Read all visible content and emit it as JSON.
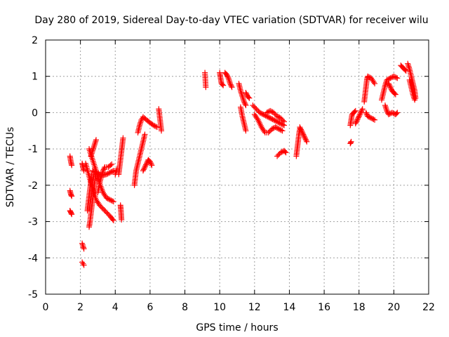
{
  "chart_data": {
    "type": "scatter",
    "title": "Day 280 of 2019, Sidereal Day-to-day VTEC variation (SDTVAR) for receiver wilu",
    "xlabel": "GPS time / hours",
    "ylabel": "SDTVAR / TECUs",
    "xlim": [
      0,
      22
    ],
    "ylim": [
      -5,
      2
    ],
    "xticks": [
      "0",
      "2",
      "4",
      "6",
      "8",
      "10",
      "12",
      "14",
      "16",
      "18",
      "20",
      "22"
    ],
    "yticks": [
      "-5",
      "-4",
      "-3",
      "-2",
      "-1",
      "0",
      "1",
      "2"
    ],
    "grid": true,
    "marker": "+",
    "marker_color": "#ff0000",
    "series": [
      {
        "name": "SDTVAR",
        "segments": [
          [
            [
              1.4,
              -1.2
            ],
            [
              1.45,
              -1.35
            ],
            [
              1.5,
              -1.45
            ]
          ],
          [
            [
              1.4,
              -2.15
            ],
            [
              1.45,
              -2.25
            ],
            [
              1.5,
              -2.3
            ]
          ],
          [
            [
              1.4,
              -2.7
            ],
            [
              1.45,
              -2.75
            ],
            [
              1.5,
              -2.8
            ]
          ],
          [
            [
              2.1,
              -3.6
            ],
            [
              2.15,
              -3.68
            ],
            [
              2.2,
              -3.75
            ]
          ],
          [
            [
              2.1,
              -4.12
            ],
            [
              2.15,
              -4.16
            ],
            [
              2.2,
              -4.2
            ]
          ],
          [
            [
              2.1,
              -1.4
            ],
            [
              2.15,
              -1.5
            ],
            [
              2.2,
              -1.6
            ]
          ],
          [
            [
              2.3,
              -1.4
            ],
            [
              2.5,
              -1.75
            ],
            [
              2.7,
              -2.1
            ],
            [
              2.9,
              -2.4
            ],
            [
              3.1,
              -2.55
            ],
            [
              3.3,
              -2.65
            ],
            [
              3.5,
              -2.75
            ],
            [
              3.7,
              -2.85
            ],
            [
              3.9,
              -2.97
            ]
          ],
          [
            [
              2.5,
              -3.15
            ],
            [
              2.55,
              -3.0
            ],
            [
              2.6,
              -2.8
            ],
            [
              2.65,
              -2.6
            ],
            [
              2.7,
              -2.4
            ],
            [
              2.75,
              -2.2
            ],
            [
              2.8,
              -2.0
            ],
            [
              2.85,
              -1.8
            ],
            [
              2.9,
              -1.6
            ]
          ],
          [
            [
              2.4,
              -2.7
            ],
            [
              2.45,
              -2.5
            ],
            [
              2.5,
              -2.3
            ],
            [
              2.55,
              -2.1
            ],
            [
              2.6,
              -1.9
            ],
            [
              2.65,
              -1.7
            ]
          ],
          [
            [
              2.6,
              -1.2
            ],
            [
              2.7,
              -1.05
            ],
            [
              2.8,
              -0.9
            ],
            [
              2.9,
              -0.75
            ]
          ],
          [
            [
              2.5,
              -1.0
            ],
            [
              2.7,
              -1.3
            ],
            [
              2.9,
              -1.6
            ],
            [
              3.1,
              -1.95
            ],
            [
              3.3,
              -2.2
            ],
            [
              3.5,
              -2.35
            ],
            [
              3.7,
              -2.4
            ],
            [
              3.9,
              -2.45
            ]
          ],
          [
            [
              2.7,
              -1.6
            ],
            [
              2.9,
              -1.65
            ],
            [
              3.1,
              -1.7
            ],
            [
              3.3,
              -1.72
            ],
            [
              3.5,
              -1.7
            ],
            [
              3.7,
              -1.65
            ],
            [
              3.9,
              -1.6
            ]
          ],
          [
            [
              3.0,
              -2.2
            ],
            [
              3.1,
              -1.95
            ],
            [
              3.2,
              -1.75
            ],
            [
              3.3,
              -1.6
            ],
            [
              3.4,
              -1.5
            ],
            [
              3.6,
              -1.5
            ],
            [
              3.8,
              -1.42
            ]
          ],
          [
            [
              4.0,
              -1.7
            ],
            [
              4.1,
              -1.55
            ]
          ],
          [
            [
              4.2,
              -1.7
            ],
            [
              4.25,
              -1.5
            ],
            [
              4.3,
              -1.3
            ],
            [
              4.35,
              -1.1
            ],
            [
              4.4,
              -0.9
            ],
            [
              4.45,
              -0.7
            ]
          ],
          [
            [
              4.3,
              -2.55
            ],
            [
              4.32,
              -2.65
            ],
            [
              4.34,
              -2.8
            ],
            [
              4.36,
              -2.95
            ]
          ],
          [
            [
              5.1,
              -2.0
            ],
            [
              5.15,
              -1.8
            ],
            [
              5.2,
              -1.6
            ],
            [
              5.3,
              -1.4
            ],
            [
              5.4,
              -1.2
            ],
            [
              5.5,
              -1.0
            ],
            [
              5.6,
              -0.8
            ],
            [
              5.7,
              -0.6
            ]
          ],
          [
            [
              5.3,
              -0.55
            ],
            [
              5.4,
              -0.35
            ],
            [
              5.5,
              -0.2
            ],
            [
              5.6,
              -0.12
            ],
            [
              5.8,
              -0.2
            ],
            [
              6.0,
              -0.28
            ],
            [
              6.2,
              -0.35
            ],
            [
              6.4,
              -0.4
            ]
          ],
          [
            [
              5.6,
              -1.6
            ],
            [
              5.7,
              -1.5
            ],
            [
              5.8,
              -1.4
            ],
            [
              5.9,
              -1.3
            ],
            [
              6.0,
              -1.35
            ],
            [
              6.1,
              -1.45
            ]
          ],
          [
            [
              6.5,
              0.1
            ],
            [
              6.55,
              -0.1
            ],
            [
              6.6,
              -0.3
            ],
            [
              6.65,
              -0.5
            ]
          ],
          [
            [
              9.15,
              1.1
            ],
            [
              9.2,
              0.7
            ]
          ],
          [
            [
              10.0,
              1.1
            ],
            [
              10.05,
              0.95
            ],
            [
              10.1,
              0.8
            ],
            [
              10.2,
              0.75
            ]
          ],
          [
            [
              10.3,
              1.1
            ],
            [
              10.4,
              1.05
            ],
            [
              10.5,
              0.95
            ],
            [
              10.6,
              0.8
            ],
            [
              10.7,
              0.7
            ]
          ],
          [
            [
              11.1,
              0.8
            ],
            [
              11.2,
              0.6
            ],
            [
              11.3,
              0.45
            ],
            [
              11.4,
              0.3
            ],
            [
              11.5,
              0.2
            ]
          ],
          [
            [
              11.2,
              0.15
            ],
            [
              11.3,
              -0.1
            ],
            [
              11.4,
              -0.3
            ],
            [
              11.5,
              -0.5
            ]
          ],
          [
            [
              11.5,
              0.55
            ],
            [
              11.6,
              0.45
            ],
            [
              11.7,
              0.4
            ]
          ],
          [
            [
              11.9,
              0.2
            ],
            [
              12.1,
              0.1
            ],
            [
              12.3,
              0.0
            ],
            [
              12.5,
              -0.05
            ],
            [
              12.7,
              -0.1
            ],
            [
              12.9,
              -0.15
            ],
            [
              13.1,
              -0.2
            ],
            [
              13.3,
              -0.25
            ],
            [
              13.5,
              -0.3
            ],
            [
              13.7,
              -0.35
            ]
          ],
          [
            [
              12.0,
              -0.05
            ],
            [
              12.2,
              -0.2
            ],
            [
              12.4,
              -0.4
            ],
            [
              12.6,
              -0.55
            ],
            [
              12.8,
              -0.55
            ],
            [
              13.0,
              -0.45
            ],
            [
              13.2,
              -0.4
            ],
            [
              13.4,
              -0.45
            ],
            [
              13.6,
              -0.5
            ]
          ],
          [
            [
              12.7,
              0.0
            ],
            [
              12.9,
              0.05
            ],
            [
              13.1,
              0.0
            ],
            [
              13.3,
              -0.1
            ],
            [
              13.5,
              -0.15
            ],
            [
              13.7,
              -0.25
            ]
          ],
          [
            [
              13.3,
              -1.2
            ],
            [
              13.5,
              -1.1
            ],
            [
              13.7,
              -1.05
            ],
            [
              13.8,
              -1.1
            ]
          ],
          [
            [
              14.4,
              -1.2
            ],
            [
              14.45,
              -1.0
            ],
            [
              14.5,
              -0.8
            ],
            [
              14.55,
              -0.6
            ],
            [
              14.6,
              -0.45
            ]
          ],
          [
            [
              14.6,
              -0.4
            ],
            [
              14.7,
              -0.5
            ],
            [
              14.8,
              -0.6
            ],
            [
              14.9,
              -0.7
            ],
            [
              15.0,
              -0.8
            ]
          ],
          [
            [
              17.5,
              -0.85
            ],
            [
              17.55,
              -0.8
            ]
          ],
          [
            [
              17.5,
              -0.35
            ],
            [
              17.55,
              -0.2
            ],
            [
              17.6,
              -0.05
            ],
            [
              17.7,
              0.0
            ],
            [
              17.8,
              0.05
            ]
          ],
          [
            [
              17.8,
              -0.3
            ],
            [
              17.9,
              -0.2
            ],
            [
              18.0,
              -0.1
            ],
            [
              18.1,
              0.0
            ],
            [
              18.2,
              0.1
            ]
          ],
          [
            [
              18.3,
              0.3
            ],
            [
              18.35,
              0.5
            ],
            [
              18.4,
              0.7
            ],
            [
              18.45,
              0.9
            ],
            [
              18.5,
              1.0
            ],
            [
              18.7,
              0.95
            ],
            [
              18.9,
              0.8
            ]
          ],
          [
            [
              18.4,
              0.0
            ],
            [
              18.5,
              -0.1
            ],
            [
              18.7,
              -0.15
            ],
            [
              18.9,
              -0.2
            ]
          ],
          [
            [
              19.3,
              0.35
            ],
            [
              19.4,
              0.55
            ],
            [
              19.5,
              0.75
            ],
            [
              19.6,
              0.9
            ],
            [
              19.8,
              0.95
            ],
            [
              20.0,
              1.0
            ],
            [
              20.2,
              0.95
            ]
          ],
          [
            [
              19.5,
              0.2
            ],
            [
              19.6,
              0.05
            ],
            [
              19.7,
              -0.05
            ],
            [
              19.9,
              0.0
            ],
            [
              20.1,
              -0.05
            ],
            [
              20.2,
              0.0
            ]
          ],
          [
            [
              19.7,
              0.8
            ],
            [
              19.8,
              0.7
            ],
            [
              19.9,
              0.6
            ],
            [
              20.0,
              0.55
            ],
            [
              20.1,
              0.5
            ]
          ],
          [
            [
              20.4,
              1.3
            ],
            [
              20.5,
              1.25
            ],
            [
              20.6,
              1.2
            ],
            [
              20.7,
              1.15
            ]
          ],
          [
            [
              20.8,
              1.35
            ],
            [
              20.9,
              1.2
            ],
            [
              21.0,
              1.0
            ],
            [
              21.1,
              0.8
            ],
            [
              21.2,
              0.6
            ],
            [
              21.25,
              0.4
            ]
          ],
          [
            [
              20.9,
              0.9
            ],
            [
              21.0,
              0.7
            ],
            [
              21.1,
              0.5
            ],
            [
              21.2,
              0.35
            ]
          ]
        ]
      }
    ]
  }
}
